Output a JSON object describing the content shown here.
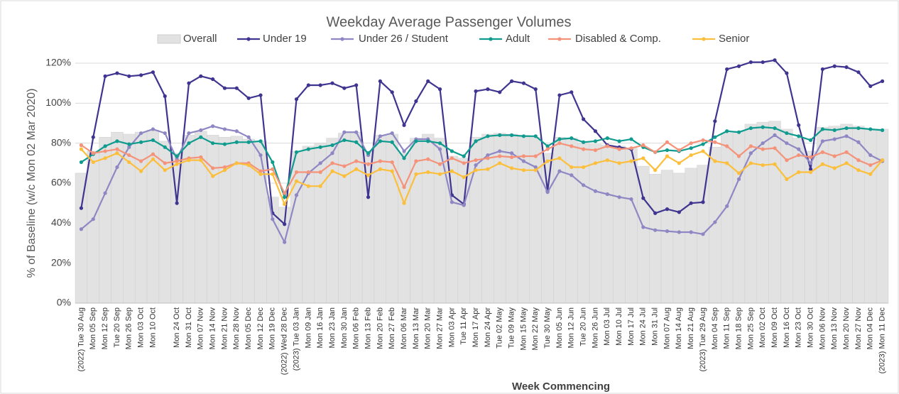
{
  "chart_data": {
    "type": "line",
    "title": "Weekday Average Passenger Volumes",
    "y_label": "% of Baseline (w/c Mon 02 Mar 2020)",
    "x_label": "Week Commencing",
    "categories": [
      "(2022) Tue 30 Aug",
      "Mon 05 Sep",
      "Mon 12 Sep",
      "Tue 20 Sep",
      "Mon 26 Sep",
      "Mon 03 Oct",
      "Mon 10 Oct",
      null,
      "Mon 24 Oct",
      "Mon 31 Oct",
      "Mon 07 Nov",
      "Mon 14 Nov",
      "Mon 21 Nov",
      "Mon 28 Nov",
      "Mon 05 Dec",
      "Mon 12 Dec",
      "Mon 19 Dec",
      "(2022) Wed 28 Dec",
      "(2023) Tue 03 Jan",
      "Mon 09 Jan",
      "Mon 16 Jan",
      "Mon 23 Jan",
      "Mon 30 Jan",
      "Mon 06 Feb",
      "Mon 13 Feb",
      "Mon 20 Feb",
      "Mon 27 Feb",
      "Mon 06 Mar",
      "Mon 13 Mar",
      "Mon 20 Mar",
      "Mon 27 Mar",
      "Mon 03 Apr",
      "Tue 11 Apr",
      "Mon 17 Apr",
      "Mon 24 Apr",
      "Tue 02 May",
      "Tue 09 May",
      "Mon 15 May",
      "Mon 22 May",
      "Tue 30 May",
      "Mon 05 Jun",
      "Mon 12 Jun",
      "Tue 20 Jun",
      "Mon 26 Jun",
      "Mon 03 Jul",
      "Mon 10 Jul",
      "Mon 17 Jul",
      "Mon 24 Jul",
      "Mon 31 Jul",
      "Mon 07 Aug",
      "Mon 14 Aug",
      "Mon 21 Aug",
      "(2023) Tue 29 Aug",
      "Mon 04 Sep",
      "Mon 11 Sep",
      "Mon 18 Sep",
      "Mon 25 Sep",
      "Mon 02 Oct",
      "Mon 09 Oct",
      "Mon 16 Oct",
      "Mon 23 Oct",
      "Mon 30 Oct",
      "Mon 06 Nov",
      "Mon 13 Nov",
      "Mon 20 Nov",
      "Mon 27 Nov",
      "Mon 04 Dec",
      "(2023) Mon 11 Dec"
    ],
    "series": [
      {
        "name": "Overall",
        "type": "bar",
        "color": "#e2e2e2",
        "values": [
          65,
          76,
          83,
          85.5,
          84.5,
          85.5,
          86.5,
          81,
          75,
          84,
          86,
          84,
          83,
          83.5,
          82,
          81,
          53,
          48,
          76,
          78.5,
          80,
          82.5,
          85,
          85.5,
          76,
          84,
          84.5,
          75,
          82.5,
          84.5,
          82.5,
          73.5,
          72.5,
          83,
          84.5,
          85,
          84.5,
          84,
          83,
          75,
          83,
          82.5,
          80,
          79.5,
          79,
          78.5,
          77.5,
          68.5,
          64.5,
          66.5,
          65,
          67.5,
          69,
          78,
          85,
          86,
          89.5,
          90.5,
          91,
          87,
          82.5,
          76,
          88,
          88.5,
          89.5,
          88.5,
          87,
          87
        ]
      },
      {
        "name": "Under 19",
        "color": "#3f3590",
        "values": [
          47.5,
          83,
          113.5,
          115,
          113.5,
          114,
          115.5,
          103.5,
          50,
          110,
          113.5,
          112,
          107.5,
          107.5,
          102.5,
          104,
          45,
          39.5,
          102,
          109,
          109,
          110,
          107.5,
          109,
          53,
          111,
          105.5,
          89,
          101,
          111,
          107,
          54,
          49.5,
          106,
          107,
          105.5,
          111,
          110,
          107,
          56,
          104,
          105.5,
          92,
          86,
          79,
          78,
          77,
          52.5,
          45,
          47,
          45.5,
          50,
          50.5,
          91,
          117,
          118.5,
          120.5,
          120.5,
          121.5,
          115,
          89,
          67,
          117,
          118.5,
          118,
          115.5,
          108.5,
          111
        ]
      },
      {
        "name": "Under 26 / Student",
        "color": "#8e87c4",
        "values": [
          37,
          42,
          55,
          68,
          78,
          85,
          87,
          85,
          72,
          85,
          86.5,
          88.5,
          87,
          86,
          83,
          74,
          42,
          30.5,
          54,
          65,
          70,
          75,
          85.5,
          85.5,
          74,
          83.5,
          85,
          76,
          82,
          82,
          77,
          50.5,
          49,
          69,
          74,
          76,
          75,
          71,
          68,
          55.5,
          66,
          64,
          59,
          56,
          54.5,
          53,
          52,
          38,
          36.5,
          36,
          35.5,
          35.5,
          34.5,
          40.5,
          48.5,
          62,
          75,
          80,
          84,
          80,
          77,
          70,
          81,
          82,
          83.5,
          80.5,
          74,
          71
        ]
      },
      {
        "name": "Adult",
        "color": "#0f9b8e",
        "values": [
          70.5,
          74.5,
          78.5,
          81,
          79.5,
          80.5,
          81.5,
          78,
          73.5,
          80,
          83,
          80,
          79.5,
          80.5,
          80.5,
          81,
          70.5,
          53,
          75.5,
          77,
          78,
          79,
          81.5,
          80.5,
          75,
          81,
          80.5,
          72.5,
          81,
          81,
          80,
          76,
          73.5,
          81,
          83.5,
          84,
          84,
          83.5,
          83.5,
          78.5,
          82,
          82.5,
          80.5,
          81,
          82.5,
          81,
          82,
          78,
          75.5,
          76.5,
          76,
          77.5,
          79.5,
          83,
          86,
          85.5,
          87.5,
          88,
          87.5,
          85,
          83.5,
          81.5,
          87,
          86.5,
          87.5,
          87.5,
          87,
          86.5
        ]
      },
      {
        "name": "Disabled & Comp.",
        "color": "#f4937a",
        "values": [
          79,
          75,
          76,
          77,
          74,
          71,
          74.5,
          70,
          71,
          72.5,
          73,
          67.5,
          68,
          70,
          70,
          66,
          67,
          55,
          65.5,
          65.5,
          65.5,
          70,
          68.5,
          71,
          69.5,
          71,
          70.5,
          58,
          71,
          72,
          69.5,
          72.5,
          70,
          71.5,
          72.5,
          73.5,
          73,
          73.5,
          73.5,
          77,
          80,
          78.5,
          77,
          76.5,
          78.5,
          77,
          77.5,
          79,
          75.5,
          80.5,
          76.5,
          80,
          81.5,
          80.5,
          78.5,
          73.5,
          78.5,
          77,
          77.5,
          71.5,
          74,
          73,
          75.5,
          73.5,
          75.5,
          71.5,
          69,
          71.5
        ]
      },
      {
        "name": "Senior",
        "color": "#fbbf3c",
        "values": [
          77,
          70.5,
          72.5,
          75,
          70.5,
          66,
          72,
          66.5,
          69.5,
          71.5,
          71.5,
          63.5,
          66.5,
          70,
          69,
          64.5,
          64.5,
          49.5,
          61,
          58.5,
          58.5,
          66,
          63.5,
          67,
          64,
          67,
          66,
          50,
          64.5,
          65.5,
          64.5,
          66,
          63,
          66.5,
          67,
          70,
          67.5,
          66.5,
          66.5,
          71,
          72.5,
          68,
          68,
          70,
          71.5,
          70,
          71,
          72.5,
          66.5,
          73.5,
          70,
          74,
          76,
          71,
          70,
          65,
          70,
          69,
          69.5,
          62,
          65.5,
          65.5,
          69.5,
          67.5,
          70,
          66.5,
          64.5,
          71.5
        ]
      }
    ],
    "ylim": [
      0,
      120
    ],
    "yticks": [
      {
        "value": 0,
        "label": "0%"
      },
      {
        "value": 20,
        "label": "20%"
      },
      {
        "value": 40,
        "label": "40%"
      },
      {
        "value": 60,
        "label": "60%"
      },
      {
        "value": 80,
        "label": "80%"
      },
      {
        "value": 100,
        "label": "100%"
      },
      {
        "value": 120,
        "label": "120%"
      }
    ],
    "grid": true,
    "legend": "top"
  }
}
